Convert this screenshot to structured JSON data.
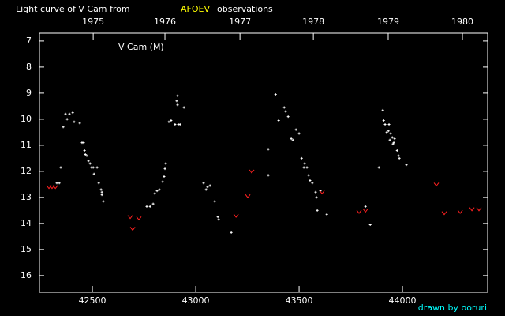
{
  "chart_data": {
    "type": "scatter",
    "title": "Light curve of V Cam from",
    "title_source": "AFOEV",
    "title_source_color": "#ffff00",
    "title_suffix": "observations",
    "annotation": "V Cam (M)",
    "credit": "drawn by ooruri",
    "credit_color": "#00ffff",
    "xlim": [
      42244,
      44412
    ],
    "xticks": [
      42500,
      43000,
      43500,
      44000
    ],
    "x2ticks": [
      {
        "value": 42504,
        "label": "1975"
      },
      {
        "value": 42851,
        "label": "1976"
      },
      {
        "value": 43214,
        "label": "1977"
      },
      {
        "value": 43569,
        "label": "1978"
      },
      {
        "value": 43931,
        "label": "1979"
      },
      {
        "value": 44290,
        "label": "1980"
      }
    ],
    "ylim": [
      16.64,
      6.7
    ],
    "yticks": [
      7,
      8,
      9,
      10,
      11,
      12,
      13,
      14,
      15,
      16
    ],
    "series": [
      {
        "color": "#ffffff",
        "marker": "plus",
        "x": [
          42347,
          42328,
          42340,
          42359,
          42370,
          42378,
          42389,
          42405,
          42412,
          42439,
          42450,
          42458,
          42462,
          42466,
          42473,
          42481,
          42489,
          42496,
          42504,
          42508,
          42523,
          42531,
          42542,
          42546,
          42553,
          42546,
          42763,
          42779,
          42794,
          42802,
          42813,
          42824,
          42840,
          42847,
          42851,
          42855,
          42870,
          42881,
          42900,
          42908,
          42912,
          42912,
          42916,
          42924,
          42943,
          43038,
          43050,
          43057,
          43069,
          43092,
          43111,
          43107,
          43172,
          43351,
          43351,
          43386,
          43401,
          43428,
          43435,
          43447,
          43462,
          43470,
          43485,
          43500,
          43512,
          43523,
          43527,
          43538,
          43546,
          43553,
          43564,
          43580,
          43584,
          43588,
          43603,
          43634,
          43821,
          43844,
          43886,
          43905,
          43909,
          43916,
          43924,
          43932,
          43935,
          43939,
          43943,
          43951,
          43954,
          43958,
          43962,
          43974,
          43981,
          43985,
          44019
        ],
        "values": [
          11.85,
          12.45,
          12.45,
          10.3,
          9.8,
          10.0,
          9.8,
          9.75,
          10.1,
          10.15,
          10.9,
          10.9,
          11.2,
          11.35,
          11.4,
          11.6,
          11.7,
          11.85,
          11.85,
          12.1,
          11.85,
          12.45,
          12.7,
          12.9,
          13.15,
          12.8,
          13.35,
          13.35,
          13.25,
          12.85,
          12.75,
          12.7,
          12.4,
          12.2,
          11.9,
          11.7,
          10.1,
          10.05,
          10.2,
          9.3,
          9.1,
          9.45,
          10.2,
          10.2,
          9.55,
          12.45,
          12.7,
          12.6,
          12.55,
          13.15,
          13.85,
          13.75,
          14.35,
          11.15,
          12.15,
          9.05,
          10.05,
          9.55,
          9.7,
          9.9,
          10.75,
          10.8,
          10.4,
          10.55,
          11.5,
          11.85,
          11.7,
          11.85,
          12.15,
          12.35,
          12.45,
          12.8,
          13.0,
          13.5,
          12.75,
          13.65,
          13.35,
          14.05,
          11.85,
          9.65,
          10.05,
          10.2,
          10.5,
          10.45,
          10.2,
          10.8,
          10.55,
          10.7,
          10.95,
          10.9,
          10.75,
          11.2,
          11.4,
          11.5,
          11.75
        ]
      },
      {
        "color": "#ff2020",
        "marker": "v",
        "x": [
          42290,
          42305,
          42321,
          42683,
          42695,
          42725,
          43195,
          43252,
          43271,
          43611,
          43790,
          43821,
          44164,
          44202,
          44279,
          44336,
          44370
        ],
        "values": [
          12.6,
          12.6,
          12.6,
          13.75,
          14.2,
          13.8,
          13.7,
          12.95,
          12.0,
          12.8,
          13.55,
          13.5,
          12.5,
          13.6,
          13.55,
          13.45,
          13.45
        ]
      }
    ]
  }
}
